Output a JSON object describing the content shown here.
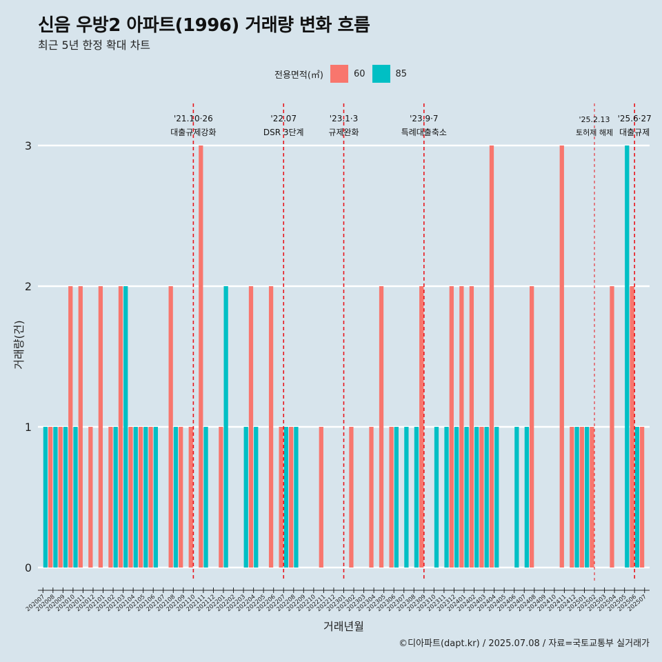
{
  "header": {
    "title": "신음 우방2 아파트(1996) 거래량 변화 흐름",
    "subtitle": "최근 5년 한정 확대 차트"
  },
  "legend": {
    "title": "전용면적(㎡)",
    "items": [
      {
        "label": "60",
        "color": "#f8766d"
      },
      {
        "label": "85",
        "color": "#00bfc4"
      }
    ]
  },
  "caption": "©디아파트(dapt.kr) / 2025.07.08 / 자료=국토교통부 실거래가",
  "chart_data": {
    "type": "bar",
    "xlabel": "거래년월",
    "ylabel": "거래량(건)",
    "ylim": [
      0,
      3
    ],
    "yticks": [
      0,
      1,
      2,
      3
    ],
    "categories": [
      "202007",
      "202008",
      "202009",
      "202010",
      "202011",
      "202012",
      "202101",
      "202102",
      "202103",
      "202104",
      "202105",
      "202106",
      "202107",
      "202108",
      "202109",
      "202110",
      "202111",
      "202112",
      "202201",
      "202202",
      "202203",
      "202204",
      "202205",
      "202206",
      "202207",
      "202208",
      "202209",
      "202210",
      "202211",
      "202212",
      "202301",
      "202302",
      "202303",
      "202304",
      "202305",
      "202306",
      "202307",
      "202308",
      "202309",
      "202310",
      "202311",
      "202312",
      "202401",
      "202402",
      "202403",
      "202404",
      "202405",
      "202406",
      "202407",
      "202408",
      "202409",
      "202410",
      "202411",
      "202412",
      "202501",
      "202502",
      "202503",
      "202504",
      "202505",
      "202506",
      "202507"
    ],
    "series": [
      {
        "name": "60",
        "color": "#f8766d",
        "values": [
          0,
          1,
          1,
          2,
          2,
          1,
          2,
          1,
          2,
          1,
          1,
          1,
          0,
          2,
          1,
          1,
          3,
          0,
          1,
          0,
          0,
          2,
          0,
          2,
          1,
          1,
          0,
          0,
          1,
          0,
          0,
          1,
          0,
          1,
          2,
          1,
          0,
          0,
          2,
          0,
          0,
          2,
          2,
          2,
          1,
          3,
          0,
          0,
          0,
          2,
          0,
          0,
          3,
          1,
          1,
          1,
          0,
          2,
          0,
          2,
          1
        ]
      },
      {
        "name": "85",
        "color": "#00bfc4",
        "values": [
          1,
          1,
          1,
          1,
          0,
          0,
          0,
          1,
          2,
          1,
          1,
          1,
          0,
          1,
          0,
          0,
          1,
          0,
          2,
          0,
          1,
          1,
          0,
          0,
          1,
          1,
          0,
          0,
          0,
          0,
          0,
          0,
          0,
          0,
          0,
          1,
          1,
          1,
          0,
          1,
          1,
          1,
          1,
          1,
          1,
          1,
          0,
          1,
          1,
          0,
          0,
          0,
          0,
          1,
          1,
          0,
          0,
          0,
          3,
          1,
          0
        ]
      }
    ],
    "events": [
      {
        "date": "'21.10·26",
        "label": "대출규제강화",
        "x": "202110",
        "style": "major"
      },
      {
        "date": "'22.07",
        "label": "DSR 3단계",
        "x": "202207",
        "style": "major"
      },
      {
        "date": "'23.1·3",
        "label": "규제완화",
        "x": "202301",
        "style": "major"
      },
      {
        "date": "'23.9·7",
        "label": "특례대출축소",
        "x": "202309",
        "style": "major"
      },
      {
        "date": "'25.2.13",
        "label": "토허제 해제",
        "x": "202502",
        "style": "minor"
      },
      {
        "date": "'25.6·27",
        "label": "대출규제",
        "x": "202506",
        "style": "major"
      }
    ],
    "grid": true,
    "legend_position": "top"
  }
}
